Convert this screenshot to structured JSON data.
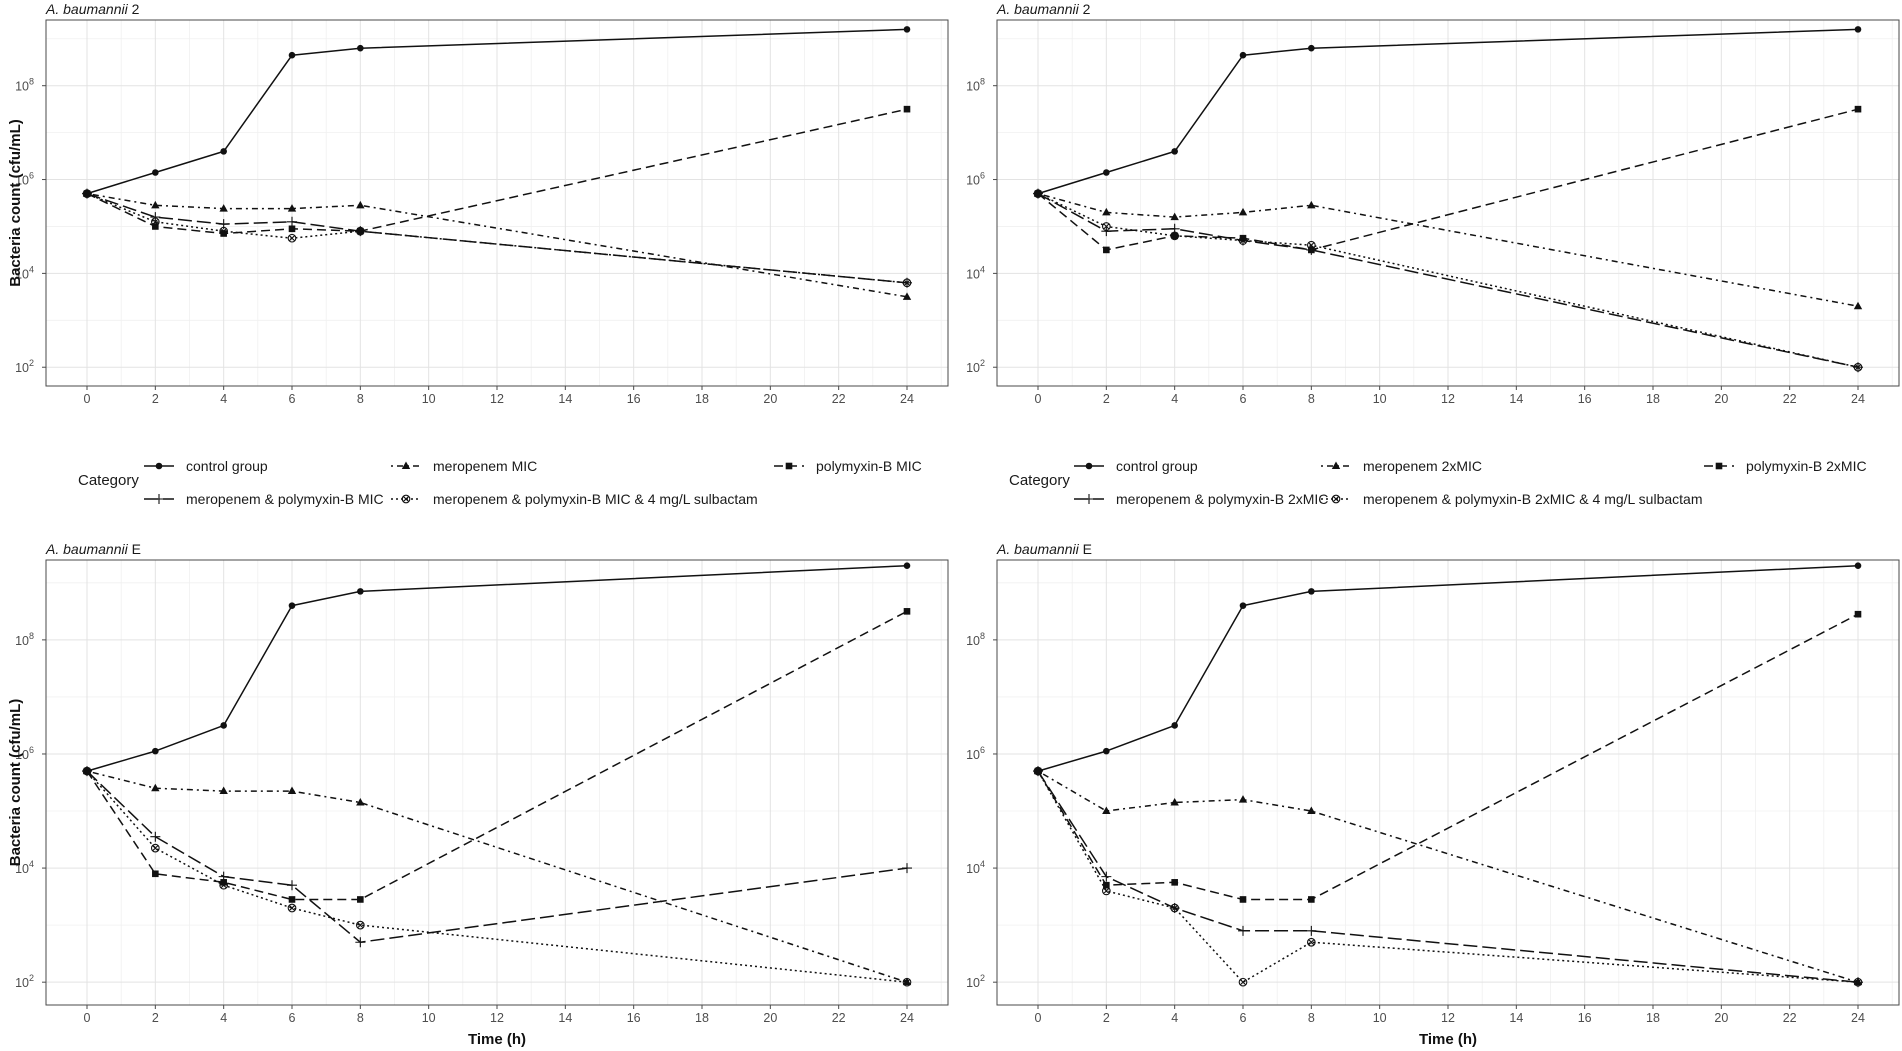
{
  "chart_data": [
    {
      "type": "line",
      "panel": "top-left",
      "title_species": "A. baumannii",
      "title_strain": "2",
      "xlabel": "",
      "ylabel": "Bacteria count (cfu/mL)",
      "yscale": "log10",
      "xlim": [
        -1.2,
        25.2
      ],
      "ylim_log10": [
        1.6,
        9.4
      ],
      "x_ticks": [
        "0",
        "2",
        "4",
        "6",
        "8",
        "10",
        "12",
        "14",
        "16",
        "18",
        "20",
        "22",
        "24"
      ],
      "y_ticks": [
        {
          "base": "10",
          "exp": "2"
        },
        {
          "base": "10",
          "exp": "4"
        },
        {
          "base": "10",
          "exp": "6"
        },
        {
          "base": "10",
          "exp": "8"
        }
      ],
      "x": [
        0,
        2,
        4,
        6,
        8,
        24
      ],
      "series": [
        {
          "name": "control group",
          "marker": "circle",
          "dash": "solid",
          "log10_values": [
            5.7,
            6.15,
            6.6,
            8.65,
            8.8,
            9.2
          ]
        },
        {
          "name": "meropenem MIC",
          "marker": "triangle",
          "dash": "dotdash",
          "log10_values": [
            5.7,
            5.45,
            5.38,
            5.38,
            5.45,
            3.5
          ]
        },
        {
          "name": "polymyxin-B MIC",
          "marker": "square",
          "dash": "dash",
          "log10_values": [
            5.7,
            5.0,
            4.85,
            4.95,
            4.9,
            7.5
          ]
        },
        {
          "name": "meropenem & polymyxin-B MIC",
          "marker": "plus",
          "dash": "longdash",
          "log10_values": [
            5.7,
            5.2,
            5.05,
            5.1,
            4.9,
            3.8
          ]
        },
        {
          "name": "meropenem & polymyxin-B MIC & 4 mg/L sulbactam",
          "marker": "circlecross",
          "dash": "dotted",
          "log10_values": [
            5.7,
            5.1,
            4.9,
            4.75,
            4.9,
            3.8
          ]
        }
      ]
    },
    {
      "type": "line",
      "panel": "top-right",
      "title_species": "A. baumannii",
      "title_strain": "2",
      "xlabel": "",
      "ylabel": "",
      "yscale": "log10",
      "xlim": [
        -1.2,
        25.2
      ],
      "ylim_log10": [
        1.6,
        9.4
      ],
      "x_ticks": [
        "0",
        "2",
        "4",
        "6",
        "8",
        "10",
        "12",
        "14",
        "16",
        "18",
        "20",
        "22",
        "24"
      ],
      "y_ticks": [
        {
          "base": "10",
          "exp": "2"
        },
        {
          "base": "10",
          "exp": "4"
        },
        {
          "base": "10",
          "exp": "6"
        },
        {
          "base": "10",
          "exp": "8"
        }
      ],
      "x": [
        0,
        2,
        4,
        6,
        8,
        24
      ],
      "series": [
        {
          "name": "control group",
          "marker": "circle",
          "dash": "solid",
          "log10_values": [
            5.7,
            6.15,
            6.6,
            8.65,
            8.8,
            9.2
          ]
        },
        {
          "name": "meropenem 2xMIC",
          "marker": "triangle",
          "dash": "dotdash",
          "log10_values": [
            5.7,
            5.3,
            5.2,
            5.3,
            5.45,
            3.3
          ]
        },
        {
          "name": "polymyxin-B 2xMIC",
          "marker": "square",
          "dash": "dash",
          "log10_values": [
            5.7,
            4.5,
            4.8,
            4.75,
            4.5,
            7.5
          ]
        },
        {
          "name": "meropenem & polymyxin-B 2xMIC",
          "marker": "plus",
          "dash": "longdash",
          "log10_values": [
            5.7,
            4.9,
            4.95,
            4.7,
            4.5,
            2.0
          ]
        },
        {
          "name": "meropenem & polymyxin-B 2xMIC & 4 mg/L sulbactam",
          "marker": "circlecross",
          "dash": "dotted",
          "log10_values": [
            5.7,
            5.0,
            4.8,
            4.7,
            4.6,
            2.0
          ]
        }
      ]
    },
    {
      "type": "line",
      "panel": "bottom-left",
      "title_species": "A. baumannii",
      "title_strain": "E",
      "xlabel": "Time (h)",
      "ylabel": "Bacteria count (cfu/mL)",
      "yscale": "log10",
      "xlim": [
        -1.2,
        25.2
      ],
      "ylim_log10": [
        1.6,
        9.4
      ],
      "x_ticks": [
        "0",
        "2",
        "4",
        "6",
        "8",
        "10",
        "12",
        "14",
        "16",
        "18",
        "20",
        "22",
        "24"
      ],
      "y_ticks": [
        {
          "base": "10",
          "exp": "2"
        },
        {
          "base": "10",
          "exp": "4"
        },
        {
          "base": "10",
          "exp": "6"
        },
        {
          "base": "10",
          "exp": "8"
        }
      ],
      "x": [
        0,
        2,
        4,
        6,
        8,
        24
      ],
      "series": [
        {
          "name": "control group",
          "marker": "circle",
          "dash": "solid",
          "log10_values": [
            5.7,
            6.05,
            6.5,
            8.6,
            8.85,
            9.3
          ]
        },
        {
          "name": "meropenem MIC",
          "marker": "triangle",
          "dash": "dotdash",
          "log10_values": [
            5.7,
            5.4,
            5.35,
            5.35,
            5.15,
            2.0
          ]
        },
        {
          "name": "polymyxin-B MIC",
          "marker": "square",
          "dash": "dash",
          "log10_values": [
            5.7,
            3.9,
            3.75,
            3.45,
            3.45,
            8.5
          ]
        },
        {
          "name": "meropenem & polymyxin-B MIC",
          "marker": "plus",
          "dash": "longdash",
          "log10_values": [
            5.7,
            4.55,
            3.85,
            3.7,
            2.7,
            4.0
          ]
        },
        {
          "name": "meropenem & polymyxin-B MIC & 4 mg/L sulbactam",
          "marker": "circlecross",
          "dash": "dotted",
          "log10_values": [
            5.7,
            4.35,
            3.7,
            3.3,
            3.0,
            2.0
          ]
        }
      ]
    },
    {
      "type": "line",
      "panel": "bottom-right",
      "title_species": "A. baumannii",
      "title_strain": "E",
      "xlabel": "Time (h)",
      "ylabel": "",
      "yscale": "log10",
      "xlim": [
        -1.2,
        25.2
      ],
      "ylim_log10": [
        1.6,
        9.4
      ],
      "x_ticks": [
        "0",
        "2",
        "4",
        "6",
        "8",
        "10",
        "12",
        "14",
        "16",
        "18",
        "20",
        "22",
        "24"
      ],
      "y_ticks": [
        {
          "base": "10",
          "exp": "2"
        },
        {
          "base": "10",
          "exp": "4"
        },
        {
          "base": "10",
          "exp": "6"
        },
        {
          "base": "10",
          "exp": "8"
        }
      ],
      "x": [
        0,
        2,
        4,
        6,
        8,
        24
      ],
      "series": [
        {
          "name": "control group",
          "marker": "circle",
          "dash": "solid",
          "log10_values": [
            5.7,
            6.05,
            6.5,
            8.6,
            8.85,
            9.3
          ]
        },
        {
          "name": "meropenem 2xMIC",
          "marker": "triangle",
          "dash": "dotdash",
          "log10_values": [
            5.7,
            5.0,
            5.15,
            5.2,
            5.0,
            2.0
          ]
        },
        {
          "name": "polymyxin-B 2xMIC",
          "marker": "square",
          "dash": "dash",
          "log10_values": [
            5.7,
            3.7,
            3.75,
            3.45,
            3.45,
            8.45
          ]
        },
        {
          "name": "meropenem & polymyxin-B 2xMIC",
          "marker": "plus",
          "dash": "longdash",
          "log10_values": [
            5.7,
            3.85,
            3.3,
            2.9,
            2.9,
            2.0
          ]
        },
        {
          "name": "meropenem & polymyxin-B 2xMIC & 4 mg/L sulbactam",
          "marker": "circlecross",
          "dash": "dotted",
          "log10_values": [
            5.7,
            3.6,
            3.3,
            2.0,
            2.7,
            2.0
          ]
        }
      ]
    }
  ],
  "legends": [
    {
      "title": "Category",
      "placement": "between-top-left-and-bottom-left",
      "entries": [
        {
          "label": "control group",
          "marker": "circle",
          "dash": "solid"
        },
        {
          "label": "meropenem MIC",
          "marker": "triangle",
          "dash": "dotdash"
        },
        {
          "label": "polymyxin-B MIC",
          "marker": "square",
          "dash": "dash"
        },
        {
          "label": "meropenem & polymyxin-B MIC",
          "marker": "plus",
          "dash": "longdash"
        },
        {
          "label": "meropenem & polymyxin-B MIC & 4 mg/L sulbactam",
          "marker": "circlecross",
          "dash": "dotted"
        }
      ]
    },
    {
      "title": "Category",
      "placement": "between-top-right-and-bottom-right",
      "entries": [
        {
          "label": "control group",
          "marker": "circle",
          "dash": "solid"
        },
        {
          "label": "meropenem 2xMIC",
          "marker": "triangle",
          "dash": "dotdash"
        },
        {
          "label": "polymyxin-B 2xMIC",
          "marker": "square",
          "dash": "dash"
        },
        {
          "label": "meropenem & polymyxin-B 2xMIC",
          "marker": "plus",
          "dash": "longdash"
        },
        {
          "label": "meropenem & polymyxin-B 2xMIC & 4 mg/L sulbactam",
          "marker": "circlecross",
          "dash": "dotted"
        }
      ]
    }
  ]
}
